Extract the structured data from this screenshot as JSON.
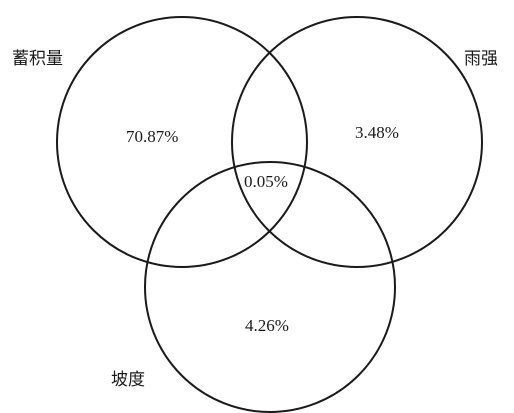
{
  "sets": {
    "stock_volume": {
      "label": "蓄积量"
    },
    "rain_intensity": {
      "label": "雨强"
    },
    "slope": {
      "label": "坡度"
    }
  },
  "regions": {
    "stock_volume_only": "70.87%",
    "rain_intensity_only": "3.48%",
    "all_three": "0.05%",
    "slope_only": "4.26%"
  }
}
